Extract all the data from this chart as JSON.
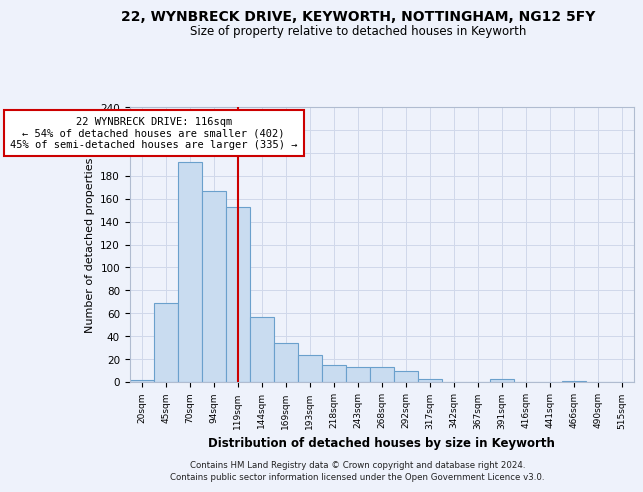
{
  "title": "22, WYNBRECK DRIVE, KEYWORTH, NOTTINGHAM, NG12 5FY",
  "subtitle": "Size of property relative to detached houses in Keyworth",
  "xlabel": "Distribution of detached houses by size in Keyworth",
  "ylabel": "Number of detached properties",
  "bar_labels": [
    "20sqm",
    "45sqm",
    "70sqm",
    "94sqm",
    "119sqm",
    "144sqm",
    "169sqm",
    "193sqm",
    "218sqm",
    "243sqm",
    "268sqm",
    "292sqm",
    "317sqm",
    "342sqm",
    "367sqm",
    "391sqm",
    "416sqm",
    "441sqm",
    "466sqm",
    "490sqm",
    "515sqm"
  ],
  "bar_values": [
    2,
    69,
    192,
    167,
    153,
    57,
    34,
    24,
    15,
    13,
    13,
    10,
    3,
    0,
    0,
    3,
    0,
    0,
    1,
    0,
    0
  ],
  "bar_color": "#c9dcf0",
  "bar_edge_color": "#6aa0cc",
  "vline_x": 4,
  "vline_color": "#cc0000",
  "ylim": [
    0,
    240
  ],
  "yticks": [
    0,
    20,
    40,
    60,
    80,
    100,
    120,
    140,
    160,
    180,
    200,
    220,
    240
  ],
  "annotation_title": "22 WYNBRECK DRIVE: 116sqm",
  "annotation_line1": "← 54% of detached houses are smaller (402)",
  "annotation_line2": "45% of semi-detached houses are larger (335) →",
  "annotation_box_color": "#ffffff",
  "annotation_box_edge": "#cc0000",
  "footer_line1": "Contains HM Land Registry data © Crown copyright and database right 2024.",
  "footer_line2": "Contains public sector information licensed under the Open Government Licence v3.0.",
  "bg_color": "#eef2fb",
  "grid_color": "#d0d8ea"
}
